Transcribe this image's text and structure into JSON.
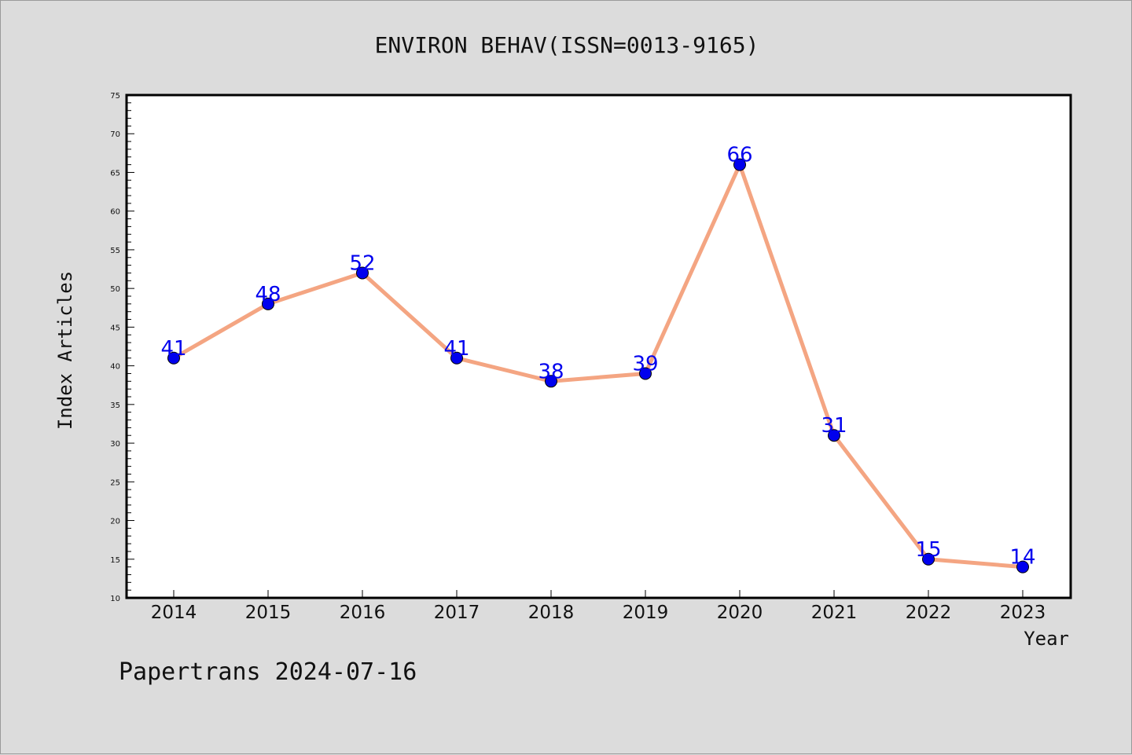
{
  "chart_data": {
    "type": "line",
    "title": "ENVIRON BEHAV(ISSN=0013-9165)",
    "xlabel": "Year",
    "ylabel": "Index Articles",
    "categories": [
      "2014",
      "2015",
      "2016",
      "2017",
      "2018",
      "2019",
      "2020",
      "2021",
      "2022",
      "2023"
    ],
    "series": [
      {
        "values": [
          41,
          48,
          52,
          41,
          38,
          39,
          66,
          31,
          15,
          14
        ]
      }
    ],
    "data_labels": [
      "41",
      "48",
      "52",
      "41",
      "38",
      "39",
      "66",
      "31",
      "15",
      "14"
    ],
    "ylim": [
      10,
      75
    ],
    "y_major_step": 5,
    "y_minor_step": 1,
    "yticks": [
      "10",
      "15",
      "20",
      "25",
      "30",
      "35",
      "40",
      "45",
      "50",
      "55",
      "60",
      "65",
      "70",
      "75"
    ],
    "grid": false,
    "legend": "none",
    "colors": {
      "line": "#f4a582",
      "marker": "#0000ee",
      "label": "#0000ee",
      "background": "#dcdcdc",
      "plot_area": "#ffffff"
    }
  },
  "footer": "Papertrans 2024-07-16"
}
